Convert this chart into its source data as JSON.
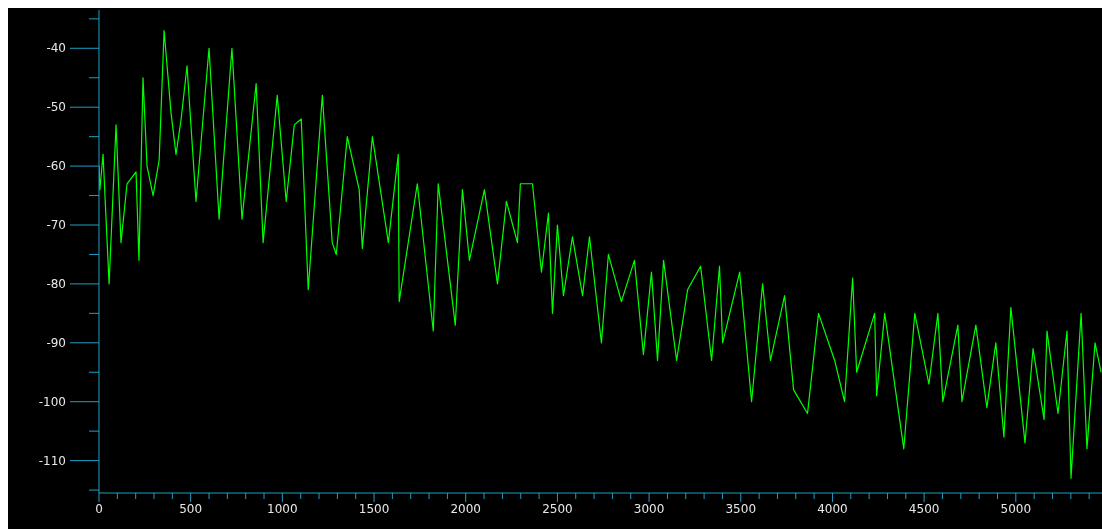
{
  "chart_data": {
    "type": "line",
    "x": [
      0,
      5,
      22,
      55,
      93,
      120,
      153,
      202,
      218,
      240,
      262,
      295,
      328,
      355,
      393,
      420,
      448,
      480,
      529,
      600,
      655,
      725,
      780,
      857,
      895,
      972,
      1021,
      1065,
      1103,
      1141,
      1218,
      1272,
      1294,
      1354,
      1419,
      1436,
      1491,
      1578,
      1632,
      1637,
      1736,
      1823,
      1850,
      1943,
      1982,
      2020,
      2102,
      2173,
      2222,
      2282,
      2298,
      2364,
      2413,
      2451,
      2473,
      2500,
      2533,
      2582,
      2637,
      2675,
      2740,
      2778,
      2849,
      2920,
      2969,
      3013,
      3046,
      3079,
      3150,
      3210,
      3281,
      3341,
      3384,
      3401,
      3494,
      3559,
      3619,
      3662,
      3739,
      3788,
      3864,
      3924,
      4012,
      4066,
      4110,
      4132,
      4230,
      4241,
      4285,
      4389,
      4449,
      4526,
      4575,
      4602,
      4684,
      4706,
      4782,
      4842,
      4891,
      4935,
      4973,
      5050,
      5094,
      5154,
      5170,
      5230,
      5279,
      5301,
      5356,
      5388,
      5432,
      5465
    ],
    "series": [
      {
        "color": "#00ff00",
        "values": [
          -60,
          -64,
          -58,
          -80,
          -53,
          -73,
          -63,
          -61,
          -76,
          -45,
          -60,
          -65,
          -59,
          -37,
          -51,
          -58,
          -52,
          -43,
          -66,
          -40,
          -69,
          -40,
          -69,
          -46,
          -73,
          -48,
          -66,
          -53,
          -52,
          -81,
          -48,
          -73,
          -75,
          -55,
          -64,
          -74,
          -55,
          -73,
          -58,
          -83,
          -63,
          -88,
          -63,
          -87,
          -64,
          -76,
          -64,
          -80,
          -66,
          -73,
          -63,
          -63,
          -78,
          -68,
          -85,
          -70,
          -82,
          -72,
          -82,
          -72,
          -90,
          -75,
          -83,
          -76,
          -92,
          -78,
          -93,
          -76,
          -93,
          -81,
          -77,
          -93,
          -77,
          -90,
          -78,
          -100,
          -80,
          -93,
          -82,
          -98,
          -102,
          -85,
          -93,
          -100,
          -79,
          -95,
          -85,
          -99,
          -85,
          -108,
          -85,
          -97,
          -85,
          -100,
          -87,
          -100,
          -87,
          -101,
          -90,
          -106,
          -84,
          -107,
          -91,
          -103,
          -88,
          -102,
          -88,
          -113,
          -85,
          -108,
          -90,
          -95
        ]
      }
    ],
    "xlim": [
      0,
      5470
    ],
    "xticks": [
      0,
      {
        "value": 100,
        "label": null
      },
      {
        "value": 200,
        "label": null
      },
      {
        "value": 300,
        "label": null
      },
      {
        "value": 400,
        "label": null
      },
      500,
      {
        "value": 600,
        "label": null
      },
      {
        "value": 700,
        "label": null
      },
      {
        "value": 800,
        "label": null
      },
      {
        "value": 900,
        "label": null
      },
      1000,
      {
        "value": 1100,
        "label": null
      },
      {
        "value": 1200,
        "label": null
      },
      {
        "value": 1300,
        "label": null
      },
      {
        "value": 1400,
        "label": null
      },
      1500,
      {
        "value": 1600,
        "label": null
      },
      {
        "value": 1700,
        "label": null
      },
      {
        "value": 1800,
        "label": null
      },
      {
        "value": 1900,
        "label": null
      },
      2000,
      {
        "value": 2100,
        "label": null
      },
      {
        "value": 2200,
        "label": null
      },
      {
        "value": 2300,
        "label": null
      },
      {
        "value": 2400,
        "label": null
      },
      2500,
      {
        "value": 2600,
        "label": null
      },
      {
        "value": 2700,
        "label": null
      },
      {
        "value": 2800,
        "label": null
      },
      {
        "value": 2900,
        "label": null
      },
      3000,
      {
        "value": 3100,
        "label": null
      },
      {
        "value": 3200,
        "label": null
      },
      {
        "value": 3300,
        "label": null
      },
      {
        "value": 3400,
        "label": null
      },
      3500,
      {
        "value": 3600,
        "label": null
      },
      {
        "value": 3700,
        "label": null
      },
      {
        "value": 3800,
        "label": null
      },
      {
        "value": 3900,
        "label": null
      },
      4000,
      {
        "value": 4100,
        "label": null
      },
      {
        "value": 4200,
        "label": null
      },
      {
        "value": 4300,
        "label": null
      },
      {
        "value": 4400,
        "label": null
      },
      4500,
      {
        "value": 4600,
        "label": null
      },
      {
        "value": 4700,
        "label": null
      },
      {
        "value": 4800,
        "label": null
      },
      {
        "value": 4900,
        "label": null
      },
      5000,
      {
        "value": 5100,
        "label": null
      },
      {
        "value": 5200,
        "label": null
      },
      {
        "value": 5300,
        "label": null
      },
      {
        "value": 5400,
        "label": null
      }
    ],
    "ylim": [
      -115.5,
      -33.5
    ],
    "yticks": [
      {
        "value": -35,
        "label": null
      },
      -40,
      {
        "value": -45,
        "label": null
      },
      -50,
      {
        "value": -55,
        "label": null
      },
      -60,
      {
        "value": -65,
        "label": null
      },
      -70,
      {
        "value": -75,
        "label": null
      },
      -80,
      {
        "value": -85,
        "label": null
      },
      -90,
      {
        "value": -95,
        "label": null
      },
      -100,
      {
        "value": -105,
        "label": null
      },
      -110,
      {
        "value": -115,
        "label": null
      }
    ],
    "line_style": "solid"
  }
}
